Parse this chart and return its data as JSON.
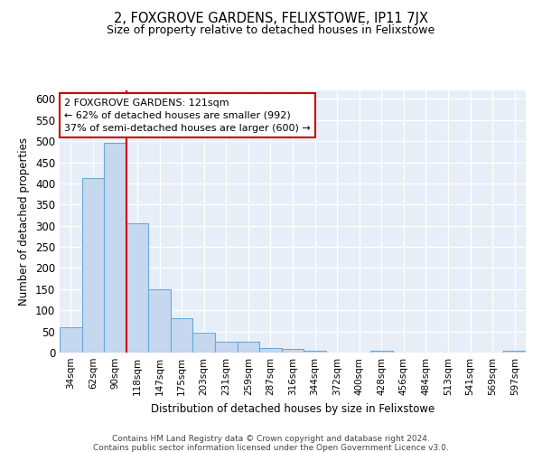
{
  "title": "2, FOXGROVE GARDENS, FELIXSTOWE, IP11 7JX",
  "subtitle": "Size of property relative to detached houses in Felixstowe",
  "xlabel": "Distribution of detached houses by size in Felixstowe",
  "ylabel": "Number of detached properties",
  "bar_labels": [
    "34sqm",
    "62sqm",
    "90sqm",
    "118sqm",
    "147sqm",
    "175sqm",
    "203sqm",
    "231sqm",
    "259sqm",
    "287sqm",
    "316sqm",
    "344sqm",
    "372sqm",
    "400sqm",
    "428sqm",
    "456sqm",
    "484sqm",
    "513sqm",
    "541sqm",
    "569sqm",
    "597sqm"
  ],
  "bar_values": [
    60,
    413,
    495,
    305,
    150,
    82,
    46,
    25,
    25,
    10,
    8,
    5,
    0,
    0,
    5,
    0,
    0,
    0,
    0,
    0,
    5
  ],
  "bar_color": "#c5d8ef",
  "bar_edgecolor": "#6aaad4",
  "vline_color": "#cc0000",
  "annotation_text": "2 FOXGROVE GARDENS: 121sqm\n← 62% of detached houses are smaller (992)\n37% of semi-detached houses are larger (600) →",
  "annotation_box_edgecolor": "#cc0000",
  "ylim": [
    0,
    620
  ],
  "yticks": [
    0,
    50,
    100,
    150,
    200,
    250,
    300,
    350,
    400,
    450,
    500,
    550,
    600
  ],
  "footer_line1": "Contains HM Land Registry data © Crown copyright and database right 2024.",
  "footer_line2": "Contains public sector information licensed under the Open Government Licence v3.0.",
  "bg_color": "#e8eef8"
}
